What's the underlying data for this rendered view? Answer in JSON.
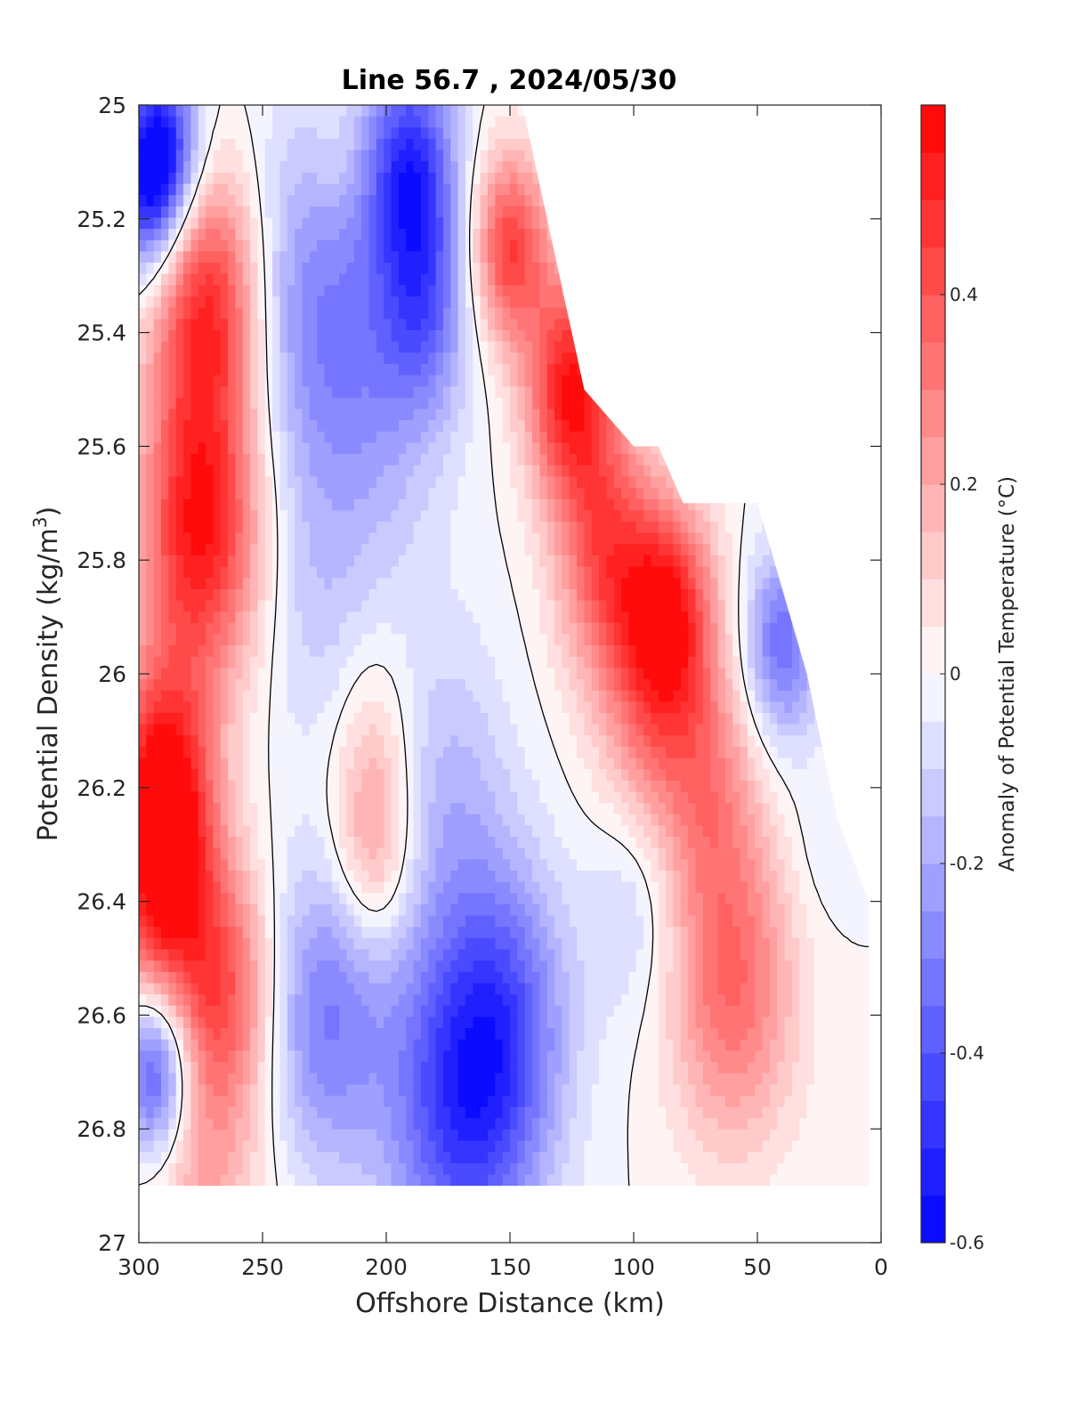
{
  "chart_data": {
    "type": "heatmap",
    "title": "Line 56.7 , 2024/05/30",
    "xlabel": "Offshore Distance (km)",
    "ylabel_parts": [
      "Potential Density (kg/m",
      "3",
      ")"
    ],
    "xlim": [
      300,
      0
    ],
    "ylim": [
      25,
      27
    ],
    "x_ticks": [
      {
        "value": 300,
        "label": "300"
      },
      {
        "value": 250,
        "label": "250"
      },
      {
        "value": 200,
        "label": "200"
      },
      {
        "value": 150,
        "label": "150"
      },
      {
        "value": 100,
        "label": "100"
      },
      {
        "value": 50,
        "label": "50"
      },
      {
        "value": 0,
        "label": "0"
      }
    ],
    "y_ticks": [
      {
        "value": 25,
        "label": "25"
      },
      {
        "value": 25.2,
        "label": "25.2"
      },
      {
        "value": 25.4,
        "label": "25.4"
      },
      {
        "value": 25.6,
        "label": "25.6"
      },
      {
        "value": 25.8,
        "label": "25.8"
      },
      {
        "value": 26,
        "label": "26"
      },
      {
        "value": 26.2,
        "label": "26.2"
      },
      {
        "value": 26.4,
        "label": "26.4"
      },
      {
        "value": 26.6,
        "label": "26.6"
      },
      {
        "value": 26.8,
        "label": "26.8"
      },
      {
        "value": 27,
        "label": "27"
      }
    ],
    "colorbar": {
      "label": "Anomaly of Potential Temperature (°C)",
      "range": [
        -0.6,
        0.6
      ],
      "levels": 24,
      "ticks": [
        {
          "value": 0.4,
          "label": "0.4"
        },
        {
          "value": 0.2,
          "label": "0.2"
        },
        {
          "value": 0,
          "label": "0"
        },
        {
          "value": -0.2,
          "label": "-0.2"
        },
        {
          "value": -0.4,
          "label": "-0.4"
        },
        {
          "value": -0.6,
          "label": "-0.6"
        }
      ],
      "colormap": "blue-white-red"
    },
    "contour_level": 0,
    "data_extent": {
      "bottom_density": 26.9,
      "top_boundary": [
        {
          "x": 300,
          "y": 25
        },
        {
          "x": 145,
          "y": 25
        },
        {
          "x": 120,
          "y": 25.5
        },
        {
          "x": 100,
          "y": 25.6
        },
        {
          "x": 90,
          "y": 25.6
        },
        {
          "x": 80,
          "y": 25.7
        },
        {
          "x": 50,
          "y": 25.7
        },
        {
          "x": 30,
          "y": 26
        },
        {
          "x": 18,
          "y": 26.25
        },
        {
          "x": 5,
          "y": 26.4
        }
      ]
    },
    "field": [
      {
        "x": 290,
        "y": 25.08,
        "value": -0.5,
        "spread": 15
      },
      {
        "x": 298,
        "y": 25.15,
        "value": -0.35,
        "spread": 14
      },
      {
        "x": 293,
        "y": 26.7,
        "value": -0.5,
        "spread": 14
      },
      {
        "x": 272,
        "y": 25.35,
        "value": 0.5,
        "spread": 22
      },
      {
        "x": 275,
        "y": 25.75,
        "value": 0.55,
        "spread": 24
      },
      {
        "x": 290,
        "y": 26.2,
        "value": 0.55,
        "spread": 20
      },
      {
        "x": 290,
        "y": 26.4,
        "value": 0.4,
        "spread": 20
      },
      {
        "x": 265,
        "y": 26.55,
        "value": 0.35,
        "spread": 20
      },
      {
        "x": 275,
        "y": 26.85,
        "value": 0.2,
        "spread": 25
      },
      {
        "x": 230,
        "y": 25.35,
        "value": -0.25,
        "spread": 30
      },
      {
        "x": 205,
        "y": 25.55,
        "value": -0.15,
        "spread": 30
      },
      {
        "x": 230,
        "y": 25.9,
        "value": -0.1,
        "spread": 22
      },
      {
        "x": 220,
        "y": 25.1,
        "value": 0.05,
        "spread": 10
      },
      {
        "x": 190,
        "y": 25.1,
        "value": -0.45,
        "spread": 18
      },
      {
        "x": 185,
        "y": 25.35,
        "value": -0.3,
        "spread": 18
      },
      {
        "x": 205,
        "y": 26.3,
        "value": 0.25,
        "spread": 16
      },
      {
        "x": 205,
        "y": 26.1,
        "value": 0.1,
        "spread": 16
      },
      {
        "x": 175,
        "y": 26.2,
        "value": -0.15,
        "spread": 25
      },
      {
        "x": 170,
        "y": 26.75,
        "value": -0.45,
        "spread": 30
      },
      {
        "x": 225,
        "y": 26.6,
        "value": -0.3,
        "spread": 25
      },
      {
        "x": 150,
        "y": 26.6,
        "value": -0.25,
        "spread": 25
      },
      {
        "x": 150,
        "y": 25.25,
        "value": 0.45,
        "spread": 15
      },
      {
        "x": 125,
        "y": 25.5,
        "value": 0.55,
        "spread": 18
      },
      {
        "x": 110,
        "y": 25.8,
        "value": 0.4,
        "spread": 20
      },
      {
        "x": 85,
        "y": 25.9,
        "value": 0.5,
        "spread": 18
      },
      {
        "x": 95,
        "y": 26.1,
        "value": 0.2,
        "spread": 20
      },
      {
        "x": 100,
        "y": 26.4,
        "value": -0.12,
        "spread": 18
      },
      {
        "x": 60,
        "y": 26.55,
        "value": 0.35,
        "spread": 25
      },
      {
        "x": 70,
        "y": 26.2,
        "value": 0.25,
        "spread": 20
      },
      {
        "x": 40,
        "y": 25.95,
        "value": -0.35,
        "spread": 15
      },
      {
        "x": 25,
        "y": 26.3,
        "value": -0.05,
        "spread": 15
      }
    ]
  }
}
